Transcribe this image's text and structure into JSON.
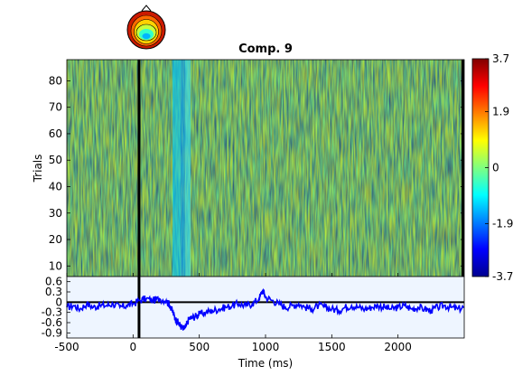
{
  "chart_data": [
    {
      "type": "heatmap",
      "title": "Comp. 9",
      "ylabel": "Trials",
      "xlim": [
        -500,
        2500
      ],
      "ylim": [
        6,
        88
      ],
      "yticks": [
        10,
        20,
        30,
        40,
        50,
        60,
        70,
        80
      ],
      "vertical_markers": [
        45,
        2500
      ],
      "colorbar": {
        "range": [
          -3.7,
          3.7
        ],
        "ticks": [
          3.7,
          1.9,
          0,
          -1.9,
          -3.7
        ],
        "colormap": "jet"
      }
    },
    {
      "type": "line",
      "xlabel": "Time (ms)",
      "xlim": [
        -500,
        2500
      ],
      "ylim": [
        -1.05,
        0.75
      ],
      "xticks": [
        -500,
        0,
        500,
        1000,
        1500,
        2000
      ],
      "yticks": [
        0.6,
        0.3,
        0,
        -0.3,
        -0.6,
        -0.9
      ],
      "ytick_labels": [
        "0.6",
        "0.3",
        "0",
        "-0.3",
        "-0.6",
        "-0.9"
      ],
      "vertical_markers": [
        45
      ],
      "series": [
        {
          "color": "#0000ff",
          "x": [
            -500,
            -450,
            -400,
            -350,
            -300,
            -250,
            -200,
            -150,
            -100,
            -50,
            0,
            50,
            100,
            150,
            200,
            250,
            280,
            300,
            320,
            340,
            360,
            380,
            400,
            420,
            450,
            480,
            500,
            550,
            600,
            650,
            700,
            750,
            800,
            850,
            900,
            950,
            980,
            1000,
            1050,
            1100,
            1150,
            1200,
            1250,
            1300,
            1350,
            1400,
            1450,
            1500,
            1550,
            1600,
            1650,
            1700,
            1750,
            1800,
            1850,
            1900,
            1950,
            2000,
            2050,
            2100,
            2150,
            2200,
            2250,
            2300,
            2350,
            2400,
            2450,
            2500
          ],
          "y": [
            -0.15,
            -0.1,
            -0.2,
            -0.05,
            -0.15,
            -0.1,
            -0.1,
            -0.05,
            -0.15,
            -0.1,
            -0.05,
            0.05,
            0.1,
            0.05,
            0.1,
            0.05,
            -0.1,
            -0.3,
            -0.5,
            -0.6,
            -0.7,
            -0.8,
            -0.7,
            -0.5,
            -0.45,
            -0.4,
            -0.35,
            -0.3,
            -0.25,
            -0.2,
            -0.15,
            -0.1,
            -0.05,
            -0.1,
            -0.05,
            0.1,
            0.35,
            0.15,
            0.05,
            -0.05,
            -0.15,
            -0.1,
            -0.05,
            -0.15,
            -0.2,
            -0.1,
            -0.15,
            -0.2,
            -0.25,
            -0.15,
            -0.1,
            -0.15,
            -0.2,
            -0.15,
            -0.1,
            -0.15,
            -0.2,
            -0.15,
            -0.1,
            -0.2,
            -0.15,
            -0.2,
            -0.25,
            -0.15,
            -0.1,
            -0.15,
            -0.2,
            -0.15
          ]
        }
      ]
    }
  ]
}
